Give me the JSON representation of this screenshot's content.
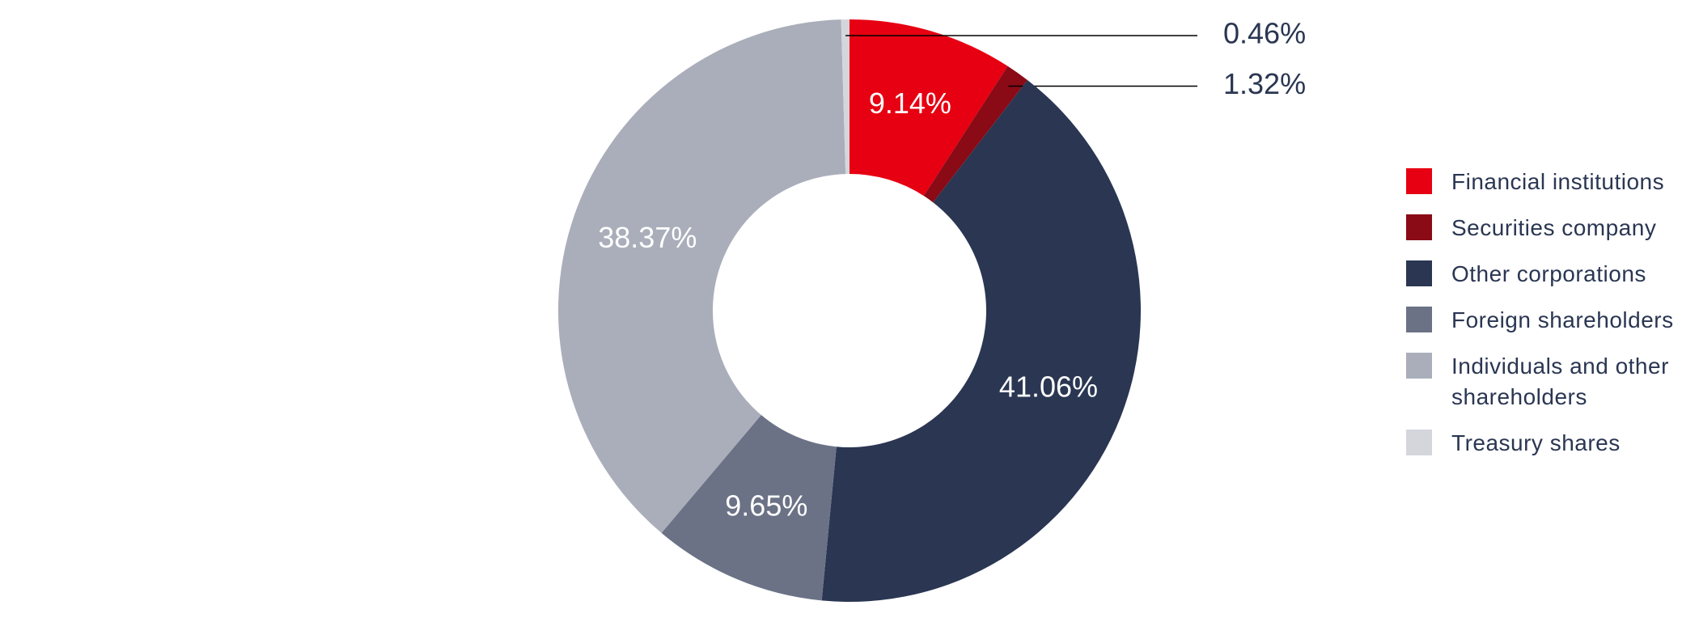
{
  "chart_data": {
    "type": "donut",
    "categories": [
      "Financial institutions",
      "Securities company",
      "Other corporations",
      "Foreign shareholders",
      "Individuals and other shareholders",
      "Treasury shares"
    ],
    "values": [
      9.14,
      1.32,
      41.06,
      9.65,
      38.37,
      0.46
    ],
    "value_labels": [
      "9.14%",
      "1.32%",
      "41.06%",
      "9.65%",
      "38.37%",
      "0.46%"
    ],
    "colors": [
      "#e60012",
      "#8a0a16",
      "#2a3652",
      "#6b7286",
      "#aaaeba",
      "#d5d6dc"
    ],
    "legend": "right"
  }
}
